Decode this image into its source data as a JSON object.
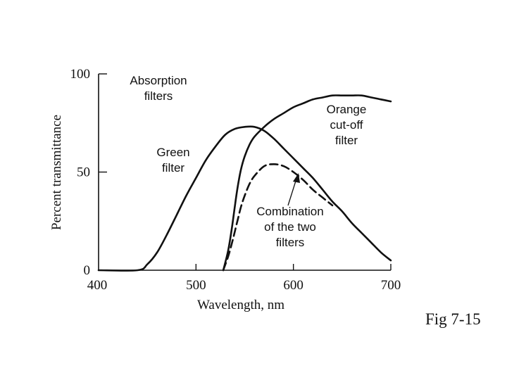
{
  "chart_data": {
    "type": "line",
    "xlabel": "Wavelength, nm",
    "ylabel": "Percent transmittance",
    "xlim": [
      400,
      700
    ],
    "ylim": [
      0,
      100
    ],
    "x_ticks": [
      "400",
      "500",
      "600",
      "700"
    ],
    "y_ticks": [
      "0",
      "50",
      "100"
    ],
    "series": [
      {
        "name": "Green filter",
        "style": "solid",
        "x": [
          400,
          440,
          450,
          460,
          470,
          480,
          490,
          500,
          510,
          520,
          530,
          540,
          550,
          560,
          570,
          580,
          590,
          600,
          610,
          620,
          630,
          640,
          650,
          660,
          670,
          680,
          690,
          700
        ],
        "y": [
          0,
          0,
          3,
          9,
          18,
          28,
          38,
          47,
          56,
          63,
          69,
          72,
          73,
          73,
          71,
          67,
          62,
          57,
          52,
          47,
          41,
          35,
          30,
          24,
          19,
          14,
          9,
          5
        ]
      },
      {
        "name": "Orange cut-off filter",
        "style": "solid",
        "x": [
          528,
          533,
          537,
          540,
          543,
          546,
          550,
          555,
          560,
          570,
          580,
          590,
          600,
          610,
          620,
          630,
          640,
          650,
          660,
          670,
          680,
          690,
          700
        ],
        "y": [
          0,
          10,
          22,
          33,
          43,
          51,
          58,
          64,
          68,
          73,
          77,
          80,
          83,
          85,
          87,
          88,
          89,
          89,
          89,
          89,
          88,
          87,
          86
        ]
      },
      {
        "name": "Combination of the two filters",
        "style": "dashed",
        "x": [
          528,
          533,
          537,
          540,
          543,
          546,
          550,
          555,
          560,
          570,
          580,
          590,
          600,
          610,
          620,
          630,
          640
        ],
        "y": [
          0,
          7,
          14,
          20,
          26,
          32,
          38,
          44,
          48,
          53,
          54,
          53,
          50,
          46,
          41,
          37,
          33
        ]
      }
    ],
    "annotations": [
      {
        "lines": [
          "Absorption",
          "filters"
        ]
      },
      {
        "lines": [
          "Green",
          "filter"
        ]
      },
      {
        "lines": [
          "Orange",
          "cut-off",
          "filter"
        ]
      },
      {
        "lines": [
          "Combination",
          "of the two",
          "filters"
        ]
      }
    ],
    "grid": false,
    "legend": "none"
  },
  "figure_label": "Fig 7-15"
}
